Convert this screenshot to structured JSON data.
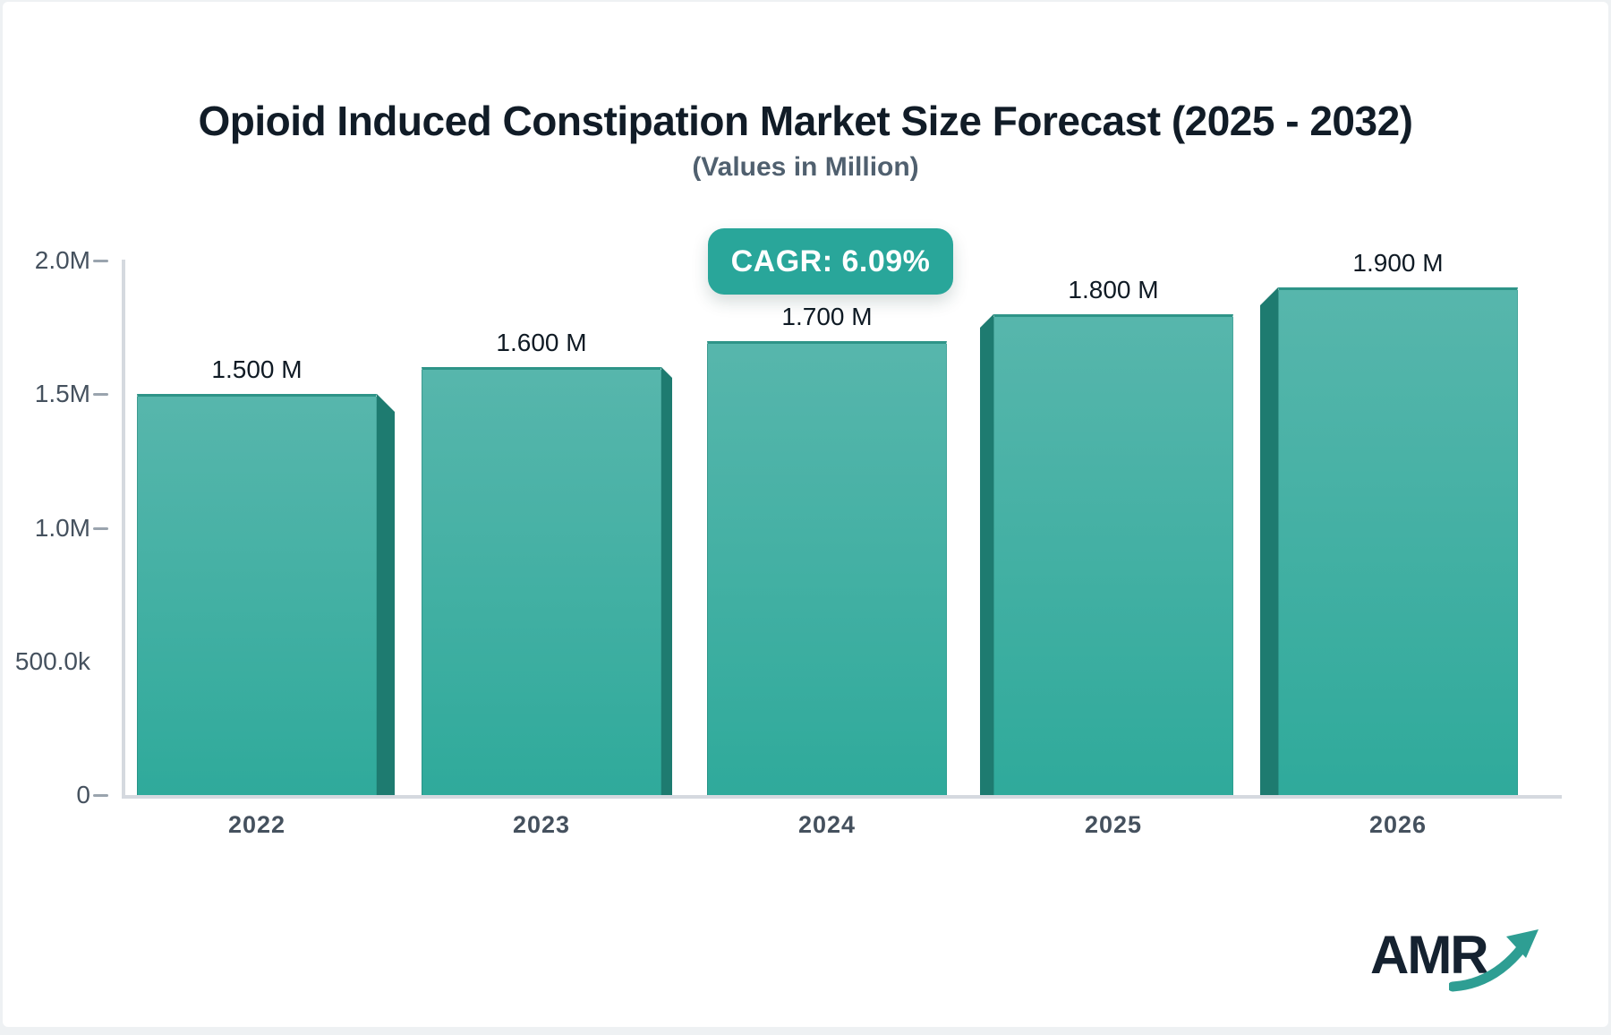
{
  "page": {
    "background": "#eef1f3",
    "card_background": "#ffffff"
  },
  "header": {
    "title": "Opioid Induced Constipation Market Size Forecast (2025 - 2032)",
    "subtitle": "(Values in Million)"
  },
  "badge": {
    "label": "CAGR: 6.09%",
    "background": "#29a69a",
    "text_color": "#ffffff"
  },
  "chart_data": {
    "type": "bar",
    "title": "Opioid Induced Constipation Market Size Forecast (2025 - 2032)",
    "subtitle": "(Values in Million)",
    "categories": [
      "2022",
      "2023",
      "2024",
      "2025",
      "2026"
    ],
    "values": [
      1.5,
      1.6,
      1.7,
      1.8,
      1.9
    ],
    "value_labels": [
      "1.500 M",
      "1.600 M",
      "1.700 M",
      "1.800 M",
      "1.900 M"
    ],
    "value_unit": "M",
    "annotation": "CAGR: 6.09%",
    "xlabel": "",
    "ylabel": "",
    "ylim": [
      0,
      2.0
    ],
    "y_ticks": [
      {
        "label": "2.0M",
        "value": 2.0,
        "has_tick": true
      },
      {
        "label": "1.5M",
        "value": 1.5,
        "has_tick": true
      },
      {
        "label": "1.0M",
        "value": 1.0,
        "has_tick": true
      },
      {
        "label": "500.0k",
        "value": 0.5,
        "has_tick": false
      },
      {
        "label": "0",
        "value": 0.0,
        "has_tick": true
      }
    ],
    "grid": false,
    "legend": false,
    "style_3d_sides": [
      "right",
      "right",
      "none",
      "left",
      "left"
    ],
    "colors": {
      "bar_gradient_top": "#57b6ac",
      "bar_gradient_bottom": "#2faa9b",
      "bar_top_edge": "#2e9488",
      "bar_side_face": "#1e7b70",
      "axis_line": "#d5d9df",
      "tick": "#9aa4ae",
      "label_text": "#45515e",
      "value_text": "#0f1a24"
    }
  },
  "logo": {
    "text": "AMR",
    "text_color": "#152230",
    "arrow_color": "#2e9e93",
    "arrow_icon": "growth-arrow"
  }
}
